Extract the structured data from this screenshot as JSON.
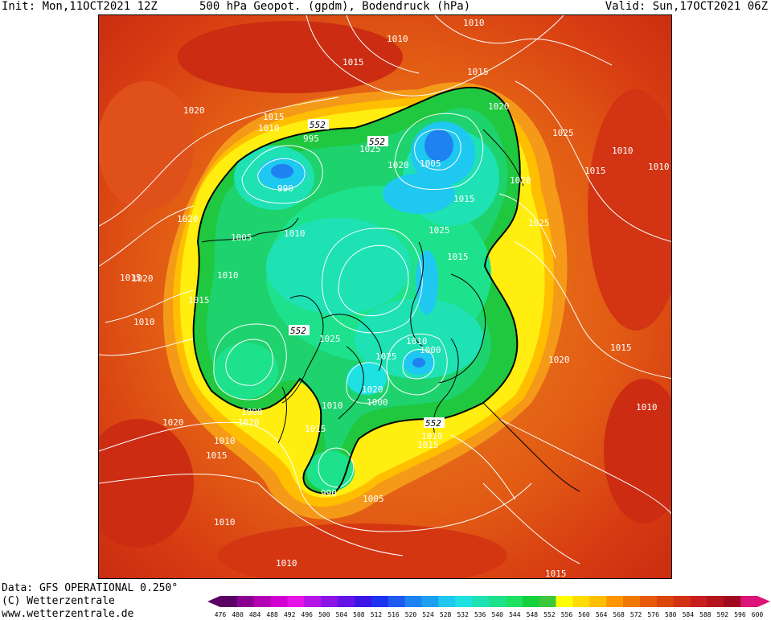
{
  "header": {
    "init": "Init: Mon,11OCT2021 12Z",
    "title": "500 hPa Geopot. (gpdm), Bodendruck (hPa)",
    "valid": "Valid: Sun,17OCT2021 06Z"
  },
  "footer": {
    "data": "Data: GFS OPERATIONAL 0.250°",
    "copyright": "(C) Wetterzentrale",
    "url": "www.wetterzentrale.de"
  },
  "colorbar": {
    "ticks": [
      "476",
      "480",
      "484",
      "488",
      "492",
      "496",
      "500",
      "504",
      "508",
      "512",
      "516",
      "520",
      "524",
      "528",
      "532",
      "536",
      "540",
      "544",
      "548",
      "552",
      "556",
      "560",
      "564",
      "568",
      "572",
      "576",
      "580",
      "584",
      "588",
      "592",
      "596",
      "600"
    ],
    "colors": [
      "#5a0064",
      "#8a0090",
      "#b400b4",
      "#d200d2",
      "#e614e6",
      "#b414e6",
      "#8c14e6",
      "#6414e6",
      "#3c14e6",
      "#1e32f0",
      "#1e5af0",
      "#1e82f0",
      "#1ea0f0",
      "#1ec8f0",
      "#1ee1e1",
      "#1ee1b4",
      "#1ee18c",
      "#1ee164",
      "#14d23c",
      "#3cc83c",
      "#ffff00",
      "#ffdc00",
      "#ffbe00",
      "#ff9600",
      "#f07800",
      "#e65a0a",
      "#dc460a",
      "#d23214",
      "#c81e1e",
      "#b4141e",
      "#a00a1e",
      "#dc1478"
    ]
  },
  "map": {
    "contour_label_552": "552",
    "isobar_labels": [
      "1010",
      "1015",
      "1020",
      "1010",
      "1015",
      "1020",
      "1025",
      "1015",
      "1010",
      "995",
      "990",
      "1005",
      "1010",
      "1025",
      "1020",
      "1005",
      "1020",
      "1015",
      "1010",
      "1025",
      "1015",
      "1020",
      "1025",
      "1010",
      "1015",
      "1020",
      "1015",
      "1010",
      "1015",
      "1010",
      "1020",
      "1025",
      "1010",
      "1000",
      "1025",
      "1020",
      "1000",
      "1015",
      "1010",
      "1020",
      "1000",
      "1010",
      "1015",
      "1020",
      "1010",
      "1015",
      "1010",
      "1015",
      "990",
      "1005",
      "1010",
      "1010",
      "1015"
    ]
  }
}
